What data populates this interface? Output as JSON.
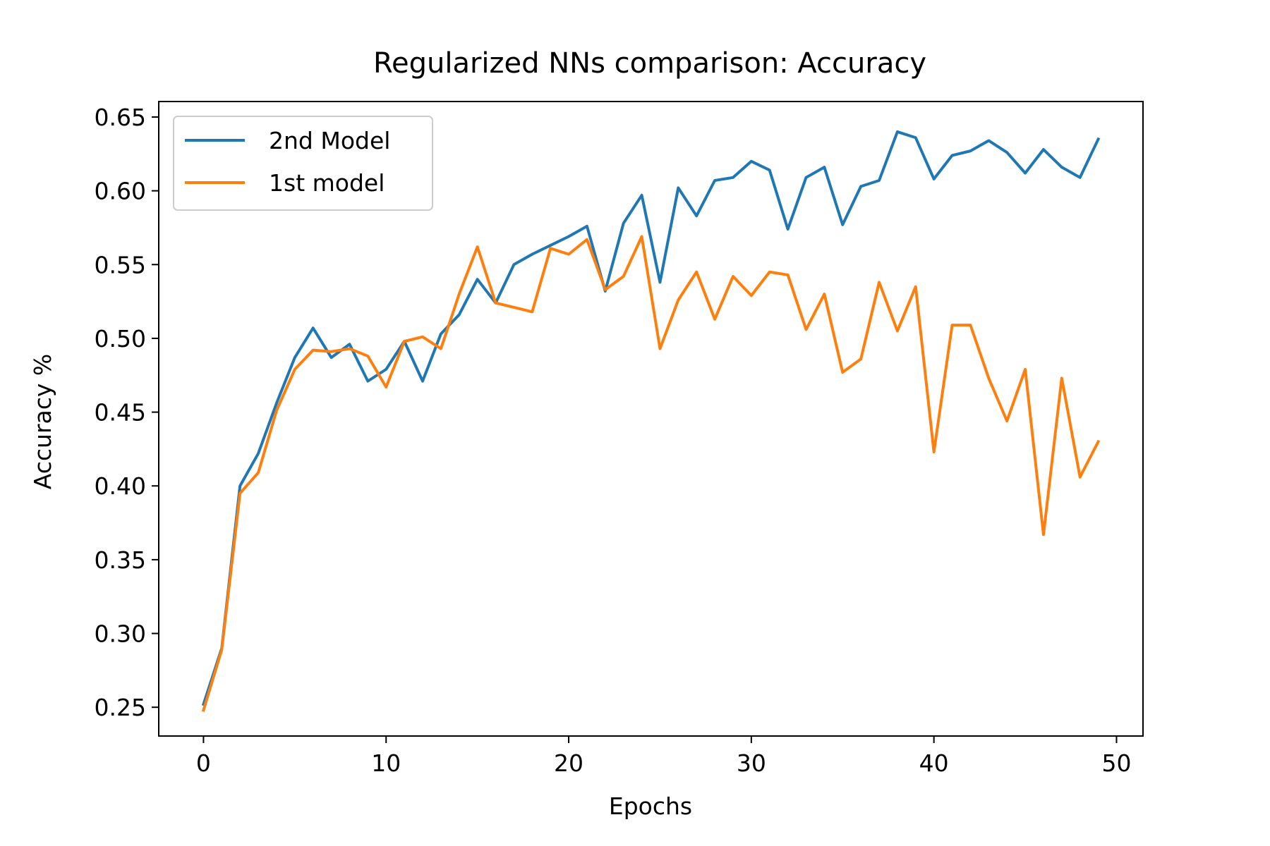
{
  "chart_data": {
    "type": "line",
    "title": "Regularized NNs comparison: Accuracy",
    "xlabel": "Epochs",
    "ylabel": "Accuracy %",
    "xlim": [
      -2.45,
      51.45
    ],
    "ylim": [
      0.2305,
      0.6605
    ],
    "xticks": [
      0,
      10,
      20,
      30,
      40,
      50
    ],
    "xtick_labels": [
      "0",
      "10",
      "20",
      "30",
      "40",
      "50"
    ],
    "yticks": [
      0.25,
      0.3,
      0.35,
      0.4,
      0.45,
      0.5,
      0.55,
      0.6,
      0.65
    ],
    "ytick_labels": [
      "0.25",
      "0.30",
      "0.35",
      "0.40",
      "0.45",
      "0.50",
      "0.55",
      "0.60",
      "0.65"
    ],
    "grid": false,
    "legend_position": "upper-left",
    "x": [
      0,
      1,
      2,
      3,
      4,
      5,
      6,
      7,
      8,
      9,
      10,
      11,
      12,
      13,
      14,
      15,
      16,
      17,
      18,
      19,
      20,
      21,
      22,
      23,
      24,
      25,
      26,
      27,
      28,
      29,
      30,
      31,
      32,
      33,
      34,
      35,
      36,
      37,
      38,
      39,
      40,
      41,
      42,
      43,
      44,
      45,
      46,
      47,
      48,
      49
    ],
    "series": [
      {
        "name": "2nd Model",
        "color": "#1f77b4",
        "values": [
          0.252,
          0.29,
          0.4,
          0.422,
          0.456,
          0.487,
          0.507,
          0.487,
          0.496,
          0.471,
          0.479,
          0.498,
          0.471,
          0.503,
          0.516,
          0.54,
          0.524,
          0.55,
          0.557,
          0.563,
          0.569,
          0.576,
          0.532,
          0.578,
          0.597,
          0.538,
          0.602,
          0.583,
          0.607,
          0.609,
          0.62,
          0.614,
          0.574,
          0.609,
          0.616,
          0.577,
          0.603,
          0.607,
          0.64,
          0.636,
          0.608,
          0.624,
          0.627,
          0.634,
          0.626,
          0.612,
          0.628,
          0.616,
          0.609,
          0.635
        ]
      },
      {
        "name": "1st model",
        "color": "#ff7f0e",
        "values": [
          0.248,
          0.289,
          0.395,
          0.409,
          0.451,
          0.479,
          0.492,
          0.491,
          0.493,
          0.488,
          0.467,
          0.498,
          0.501,
          0.493,
          0.53,
          0.562,
          0.524,
          0.521,
          0.518,
          0.561,
          0.557,
          0.567,
          0.533,
          0.542,
          0.569,
          0.493,
          0.526,
          0.545,
          0.513,
          0.542,
          0.529,
          0.545,
          0.543,
          0.506,
          0.53,
          0.477,
          0.486,
          0.538,
          0.505,
          0.535,
          0.423,
          0.509,
          0.509,
          0.473,
          0.444,
          0.479,
          0.367,
          0.473,
          0.406,
          0.43
        ]
      }
    ]
  }
}
